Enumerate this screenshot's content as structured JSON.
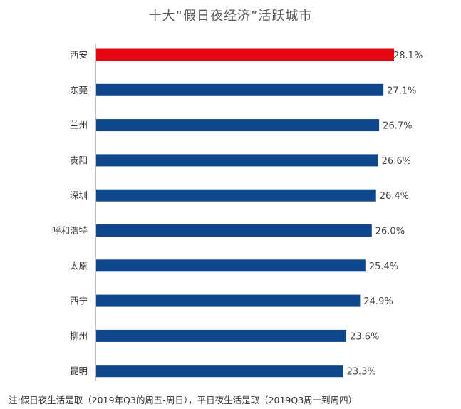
{
  "chart_data": {
    "type": "bar",
    "orientation": "horizontal",
    "title": "十大“假日夜经济”活跃城市",
    "categories": [
      "西安",
      "东莞",
      "兰州",
      "贵阳",
      "深圳",
      "呼和浩特",
      "太原",
      "西宁",
      "柳州",
      "昆明"
    ],
    "values": [
      28.1,
      27.1,
      26.7,
      26.6,
      26.4,
      26.0,
      25.4,
      24.9,
      23.6,
      23.3
    ],
    "value_labels": [
      "28.1%",
      "27.1%",
      "26.7%",
      "26.6%",
      "26.4%",
      "26.0%",
      "25.4%",
      "24.9%",
      "23.6%",
      "23.3%"
    ],
    "unit": "%",
    "xlim": [
      0,
      28.1
    ],
    "grid": false,
    "colors": {
      "highlight": "#e30613",
      "default": "#0f468c"
    },
    "highlight_index": 0
  },
  "footnote": "注:假日夜生活是取（2019年Q3的周五-周日），平日夜生活是取（2019Q3周一到周四）"
}
